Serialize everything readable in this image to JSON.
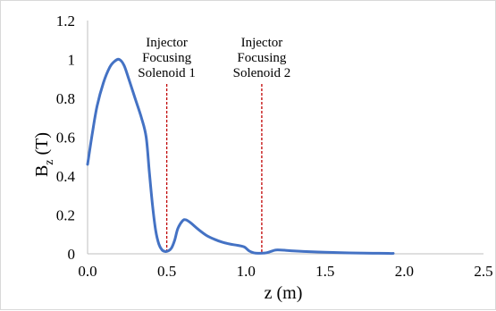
{
  "chart_data": {
    "type": "line",
    "xlim": [
      0,
      2.5
    ],
    "ylim": [
      0,
      1.2
    ],
    "x_ticks": [
      "0.0",
      "0.5",
      "1.0",
      "1.5",
      "2.0",
      "2.5"
    ],
    "y_ticks": [
      "0",
      "0.2",
      "0.4",
      "0.6",
      "0.8",
      "1",
      "1.2"
    ],
    "xlabel": "z (m)",
    "ylabel": "Bz (T)",
    "ylabel_main": "B",
    "ylabel_sub": "z",
    "ylabel_tail": " (T)",
    "grid": false,
    "series": [
      {
        "color": "#4472c4",
        "x": [
          0.0,
          0.03,
          0.06,
          0.1,
          0.14,
          0.17,
          0.2,
          0.23,
          0.26,
          0.3,
          0.34,
          0.37,
          0.39,
          0.41,
          0.43,
          0.45,
          0.47,
          0.49,
          0.51,
          0.53,
          0.55,
          0.57,
          0.6,
          0.62,
          0.65,
          0.7,
          0.75,
          0.8,
          0.85,
          0.9,
          0.95,
          0.99,
          1.02,
          1.05,
          1.08,
          1.12,
          1.15,
          1.18,
          1.2,
          1.25,
          1.3,
          1.4,
          1.5,
          1.6,
          1.7,
          1.8,
          1.9,
          1.93
        ],
        "y": [
          0.46,
          0.62,
          0.76,
          0.88,
          0.96,
          0.99,
          1.0,
          0.97,
          0.9,
          0.8,
          0.7,
          0.6,
          0.42,
          0.25,
          0.12,
          0.05,
          0.02,
          0.012,
          0.015,
          0.03,
          0.07,
          0.13,
          0.17,
          0.175,
          0.16,
          0.125,
          0.095,
          0.075,
          0.06,
          0.05,
          0.043,
          0.035,
          0.015,
          0.005,
          0.003,
          0.004,
          0.01,
          0.018,
          0.02,
          0.018,
          0.015,
          0.011,
          0.008,
          0.006,
          0.004,
          0.003,
          0.002,
          0.002
        ]
      }
    ],
    "markers": [
      {
        "x": 0.5,
        "color": "#c00000",
        "label_lines": [
          "Injector",
          "Focusing",
          "Solenoid 1"
        ]
      },
      {
        "x": 1.1,
        "color": "#c00000",
        "label_lines": [
          "Injector",
          "Focusing",
          "Solenoid  2"
        ]
      }
    ]
  }
}
